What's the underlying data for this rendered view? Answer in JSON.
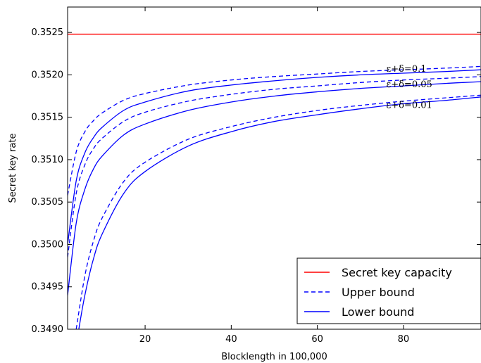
{
  "chart_data": {
    "type": "line",
    "xlabel": "Blocklength in 100,000",
    "ylabel": "Secret key rate",
    "xlim": [
      2,
      98
    ],
    "ylim": [
      0.349,
      0.3528
    ],
    "x_ticks": [
      20,
      40,
      60,
      80
    ],
    "y_ticks": [
      0.349,
      0.3495,
      0.35,
      0.3505,
      0.351,
      0.3515,
      0.352,
      0.3525
    ],
    "y_tick_labels": [
      "0.3490",
      "0.3495",
      "0.3500",
      "0.3505",
      "0.3510",
      "0.3515",
      "0.3520",
      "0.3525"
    ],
    "grid": false,
    "legend_position": "bottom-right",
    "legend": [
      "Secret key capacity",
      "Upper bound",
      "Lower bound"
    ],
    "colors": {
      "capacity": "#ff0000",
      "bounds": "#0000ff"
    },
    "capacity": 0.35248,
    "annotations": [
      "ε+δ=0.1",
      "ε+δ=0.05",
      "ε+δ=0.01"
    ],
    "series": [
      {
        "group": "ε+δ=0.1",
        "kind": "upper",
        "style": "dashed",
        "x": [
          2,
          4,
          6,
          8,
          10,
          15,
          20,
          30,
          40,
          50,
          60,
          70,
          80,
          90,
          98
        ],
        "values": [
          0.35058,
          0.35109,
          0.35133,
          0.35146,
          0.35155,
          0.3517,
          0.35178,
          0.35188,
          0.35194,
          0.35198,
          0.35201,
          0.35204,
          0.35206,
          0.35208,
          0.3521
        ]
      },
      {
        "group": "ε+δ=0.1",
        "kind": "lower",
        "style": "solid",
        "x": [
          2,
          4,
          6,
          8,
          10,
          15,
          20,
          30,
          40,
          50,
          60,
          70,
          80,
          90,
          98
        ],
        "values": [
          0.35,
          0.35075,
          0.35108,
          0.35126,
          0.35138,
          0.35158,
          0.35168,
          0.35181,
          0.35188,
          0.35193,
          0.35197,
          0.352,
          0.35202,
          0.35204,
          0.35206
        ]
      },
      {
        "group": "ε+δ=0.05",
        "kind": "upper",
        "style": "dashed",
        "x": [
          2,
          4,
          6,
          8,
          10,
          15,
          20,
          30,
          40,
          50,
          60,
          70,
          80,
          90,
          98
        ],
        "values": [
          0.34985,
          0.3506,
          0.35094,
          0.35113,
          0.35125,
          0.35145,
          0.35156,
          0.35169,
          0.35177,
          0.35183,
          0.35187,
          0.35191,
          0.35194,
          0.35196,
          0.35198
        ]
      },
      {
        "group": "ε+δ=0.05",
        "kind": "lower",
        "style": "solid",
        "x": [
          2,
          4,
          6,
          8,
          10,
          15,
          20,
          30,
          40,
          50,
          60,
          70,
          80,
          90,
          98
        ],
        "values": [
          0.3494,
          0.35025,
          0.35065,
          0.35089,
          0.35104,
          0.35129,
          0.35142,
          0.35158,
          0.35168,
          0.35175,
          0.3518,
          0.35184,
          0.35187,
          0.3519,
          0.35192
        ]
      },
      {
        "group": "ε+δ=0.01",
        "kind": "upper",
        "style": "dashed",
        "x": [
          4,
          6,
          8,
          10,
          15,
          20,
          30,
          40,
          50,
          60,
          70,
          80,
          90,
          98
        ],
        "values": [
          0.349,
          0.34963,
          0.35004,
          0.35031,
          0.35074,
          0.35097,
          0.35124,
          0.35139,
          0.3515,
          0.35158,
          0.35164,
          0.35169,
          0.35173,
          0.35176
        ]
      },
      {
        "group": "ε+δ=0.01",
        "kind": "lower",
        "style": "solid",
        "x": [
          4.6,
          6,
          8,
          10,
          15,
          20,
          30,
          40,
          50,
          60,
          70,
          80,
          90,
          98
        ],
        "values": [
          0.349,
          0.3494,
          0.34983,
          0.35012,
          0.3506,
          0.35086,
          0.35116,
          0.35133,
          0.35145,
          0.35153,
          0.3516,
          0.35166,
          0.3517,
          0.35174
        ]
      }
    ]
  }
}
